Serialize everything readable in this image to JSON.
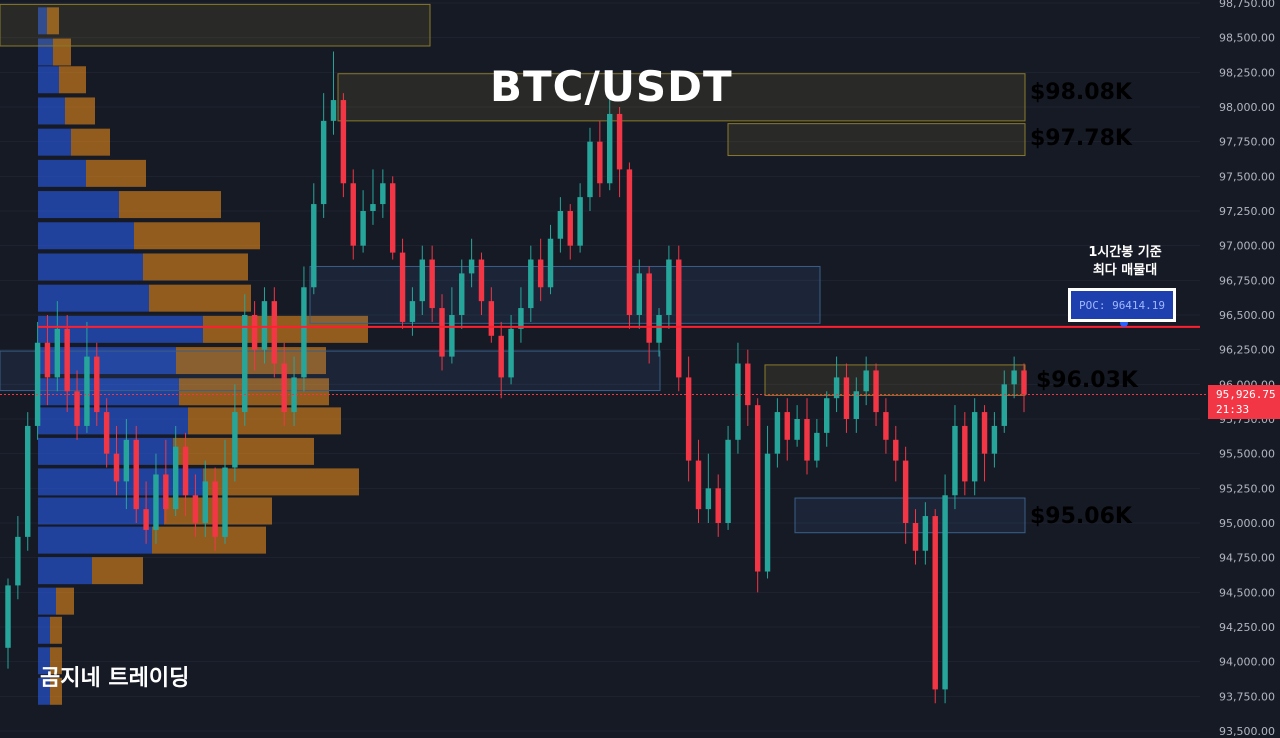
{
  "title": "BTC/USDT",
  "brand": "곰지네 트레이딩",
  "note": {
    "line1": "1시간봉 기준",
    "line2": "최다 매물대"
  },
  "poc_label": "POC: 96414.19",
  "current_price": {
    "value": "95,926.75",
    "countdown": "21:33"
  },
  "levels": [
    {
      "label": "$98.08K",
      "price": 98080,
      "color": "#f5b700"
    },
    {
      "label": "$97.78K",
      "price": 97780,
      "color": "#f5b700"
    },
    {
      "label": "$96.03K",
      "price": 96030,
      "color": "#f5b700"
    },
    {
      "label": "$95.06K",
      "price": 95060,
      "color": "#3da5f4"
    }
  ],
  "colors": {
    "up": "#26a69a",
    "down": "#f23645",
    "volume_buy": "#2962ff",
    "volume_sell": "#f7931a",
    "poc_line": "#ff1f2f"
  },
  "chart_data": {
    "type": "candlestick",
    "y_axis_ticks": [
      "98,750.00",
      "98,500.00",
      "98,250.00",
      "98,000.00",
      "97,750.00",
      "97,500.00",
      "97,250.00",
      "97,000.00",
      "96,750.00",
      "96,500.00",
      "96,250.00",
      "96,000.00",
      "95,750.00",
      "95,500.00",
      "95,250.00",
      "95,000.00",
      "94,750.00",
      "94,500.00",
      "94,250.00",
      "94,000.00",
      "93,750.00",
      "93,500.00"
    ],
    "ylim": [
      93500,
      98750
    ],
    "poc": 96414.19,
    "current": 95926.75,
    "volume_profile": [
      {
        "price": 98625,
        "buy": 3,
        "sell": 4
      },
      {
        "price": 98400,
        "buy": 5,
        "sell": 6
      },
      {
        "price": 98200,
        "buy": 7,
        "sell": 9
      },
      {
        "price": 97975,
        "buy": 9,
        "sell": 10
      },
      {
        "price": 97750,
        "buy": 11,
        "sell": 13
      },
      {
        "price": 97525,
        "buy": 16,
        "sell": 20
      },
      {
        "price": 97300,
        "buy": 27,
        "sell": 34
      },
      {
        "price": 97075,
        "buy": 32,
        "sell": 42
      },
      {
        "price": 96850,
        "buy": 35,
        "sell": 35
      },
      {
        "price": 96625,
        "buy": 37,
        "sell": 34
      },
      {
        "price": 96400,
        "buy": 55,
        "sell": 55
      },
      {
        "price": 96175,
        "buy": 46,
        "sell": 50
      },
      {
        "price": 95950,
        "buy": 47,
        "sell": 50
      },
      {
        "price": 95740,
        "buy": 50,
        "sell": 51
      },
      {
        "price": 95520,
        "buy": 45,
        "sell": 47
      },
      {
        "price": 95300,
        "buy": 55,
        "sell": 52
      },
      {
        "price": 95090,
        "buy": 42,
        "sell": 36
      },
      {
        "price": 94880,
        "buy": 38,
        "sell": 38
      },
      {
        "price": 94660,
        "buy": 18,
        "sell": 17
      },
      {
        "price": 94440,
        "buy": 6,
        "sell": 6
      },
      {
        "price": 94230,
        "buy": 4,
        "sell": 4
      },
      {
        "price": 94010,
        "buy": 4,
        "sell": 4
      },
      {
        "price": 93790,
        "buy": 4,
        "sell": 4
      }
    ],
    "zones": [
      {
        "x0": 0,
        "x1": 430,
        "top": 98740,
        "bottom": 98440,
        "kind": "supply"
      },
      {
        "x0": 338,
        "x1": 1025,
        "top": 98240,
        "bottom": 97900,
        "kind": "supply"
      },
      {
        "x0": 728,
        "x1": 1025,
        "top": 97880,
        "bottom": 97650,
        "kind": "supply"
      },
      {
        "x0": 310,
        "x1": 820,
        "top": 96850,
        "bottom": 96440,
        "kind": "demand"
      },
      {
        "x0": 0,
        "x1": 660,
        "top": 96240,
        "bottom": 95955,
        "kind": "demand"
      },
      {
        "x0": 765,
        "x1": 1025,
        "top": 96140,
        "bottom": 95920,
        "kind": "supply"
      },
      {
        "x0": 795,
        "x1": 1025,
        "top": 95180,
        "bottom": 94930,
        "kind": "demand"
      }
    ],
    "candles": [
      [
        94100,
        94550,
        93950,
        94600
      ],
      [
        94550,
        94900,
        94450,
        95050
      ],
      [
        94900,
        95700,
        94800,
        95800
      ],
      [
        95700,
        96300,
        95600,
        96450
      ],
      [
        96300,
        96050,
        95850,
        96500
      ],
      [
        96050,
        96400,
        95950,
        96600
      ],
      [
        96400,
        95950,
        95800,
        96500
      ],
      [
        95950,
        95700,
        95600,
        96100
      ],
      [
        95700,
        96200,
        95650,
        96450
      ],
      [
        96200,
        95800,
        95700,
        96300
      ],
      [
        95800,
        95500,
        95400,
        95900
      ],
      [
        95500,
        95300,
        95200,
        95700
      ],
      [
        95300,
        95600,
        95100,
        95750
      ],
      [
        95600,
        95100,
        95000,
        95700
      ],
      [
        95100,
        94950,
        94850,
        95300
      ],
      [
        94950,
        95350,
        94850,
        95500
      ],
      [
        95350,
        95100,
        95000,
        95600
      ],
      [
        95100,
        95550,
        95050,
        95700
      ],
      [
        95550,
        95200,
        95050,
        95650
      ],
      [
        95200,
        95000,
        94900,
        95350
      ],
      [
        95000,
        95300,
        94900,
        95450
      ],
      [
        95300,
        94900,
        94800,
        95400
      ],
      [
        94900,
        95400,
        94850,
        95600
      ],
      [
        95400,
        95800,
        95300,
        96000
      ],
      [
        95800,
        96500,
        95700,
        96650
      ],
      [
        96500,
        96250,
        96100,
        96600
      ],
      [
        96250,
        96600,
        96150,
        96700
      ],
      [
        96600,
        96150,
        96050,
        96700
      ],
      [
        96150,
        95800,
        95700,
        96300
      ],
      [
        95800,
        96050,
        95700,
        96200
      ],
      [
        96050,
        96700,
        95950,
        96850
      ],
      [
        96700,
        97300,
        96650,
        97450
      ],
      [
        97300,
        97900,
        97200,
        98100
      ],
      [
        97900,
        98050,
        97800,
        98400
      ],
      [
        98050,
        97450,
        97350,
        98100
      ],
      [
        97450,
        97000,
        96900,
        97550
      ],
      [
        97000,
        97250,
        96950,
        97400
      ],
      [
        97250,
        97300,
        97150,
        97550
      ],
      [
        97300,
        97450,
        97200,
        97550
      ],
      [
        97450,
        96950,
        96900,
        97500
      ],
      [
        96950,
        96450,
        96400,
        97050
      ],
      [
        96450,
        96600,
        96350,
        96700
      ],
      [
        96600,
        96900,
        96500,
        97000
      ],
      [
        96900,
        96550,
        96450,
        97000
      ],
      [
        96550,
        96200,
        96100,
        96650
      ],
      [
        96200,
        96500,
        96150,
        96700
      ],
      [
        96500,
        96800,
        96400,
        96900
      ],
      [
        96800,
        96900,
        96700,
        97050
      ],
      [
        96900,
        96600,
        96500,
        96950
      ],
      [
        96600,
        96350,
        96300,
        96700
      ],
      [
        96350,
        96050,
        95900,
        96450
      ],
      [
        96050,
        96400,
        96000,
        96500
      ],
      [
        96400,
        96550,
        96300,
        96700
      ],
      [
        96550,
        96900,
        96450,
        97000
      ],
      [
        96900,
        96700,
        96600,
        97050
      ],
      [
        96700,
        97050,
        96650,
        97150
      ],
      [
        97050,
        97250,
        96950,
        97350
      ],
      [
        97250,
        97000,
        96900,
        97300
      ],
      [
        97000,
        97350,
        96950,
        97450
      ],
      [
        97350,
        97750,
        97250,
        97850
      ],
      [
        97750,
        97450,
        97350,
        97900
      ],
      [
        97450,
        97950,
        97400,
        98100
      ],
      [
        97950,
        97550,
        97350,
        98000
      ],
      [
        97550,
        96500,
        96400,
        97600
      ],
      [
        96500,
        96800,
        96400,
        96900
      ],
      [
        96800,
        96300,
        96150,
        96850
      ],
      [
        96300,
        96500,
        96200,
        96550
      ],
      [
        96500,
        96900,
        96400,
        97000
      ],
      [
        96900,
        96050,
        95950,
        97000
      ],
      [
        96050,
        95450,
        95300,
        96200
      ],
      [
        95450,
        95100,
        95000,
        95600
      ],
      [
        95100,
        95250,
        95000,
        95500
      ],
      [
        95250,
        95000,
        94900,
        95350
      ],
      [
        95000,
        95600,
        94950,
        95700
      ],
      [
        95600,
        96150,
        95500,
        96300
      ],
      [
        96150,
        95850,
        95700,
        96250
      ],
      [
        95850,
        94650,
        94500,
        95900
      ],
      [
        94650,
        95500,
        94600,
        95700
      ],
      [
        95500,
        95800,
        95400,
        95900
      ],
      [
        95800,
        95600,
        95450,
        95900
      ],
      [
        95600,
        95750,
        95550,
        95850
      ],
      [
        95750,
        95450,
        95350,
        95900
      ],
      [
        95450,
        95650,
        95400,
        95750
      ],
      [
        95650,
        95900,
        95550,
        95950
      ],
      [
        95900,
        96050,
        95800,
        96200
      ],
      [
        96050,
        95750,
        95650,
        96150
      ],
      [
        95750,
        95950,
        95650,
        96050
      ],
      [
        95950,
        96100,
        95850,
        96200
      ],
      [
        96100,
        95800,
        95700,
        96150
      ],
      [
        95800,
        95600,
        95500,
        95900
      ],
      [
        95600,
        95450,
        95300,
        95700
      ],
      [
        95450,
        95000,
        94850,
        95550
      ],
      [
        95000,
        94800,
        94700,
        95100
      ],
      [
        94800,
        95050,
        94700,
        95150
      ],
      [
        95050,
        93800,
        93700,
        95100
      ],
      [
        93800,
        95200,
        93700,
        95350
      ],
      [
        95200,
        95700,
        95100,
        95850
      ],
      [
        95700,
        95300,
        95200,
        95800
      ],
      [
        95300,
        95800,
        95200,
        95900
      ],
      [
        95800,
        95500,
        95300,
        95850
      ],
      [
        95500,
        95700,
        95400,
        95800
      ],
      [
        95700,
        96000,
        95650,
        96100
      ],
      [
        96000,
        96100,
        95900,
        96200
      ],
      [
        96100,
        95926,
        95800,
        96150
      ]
    ]
  }
}
